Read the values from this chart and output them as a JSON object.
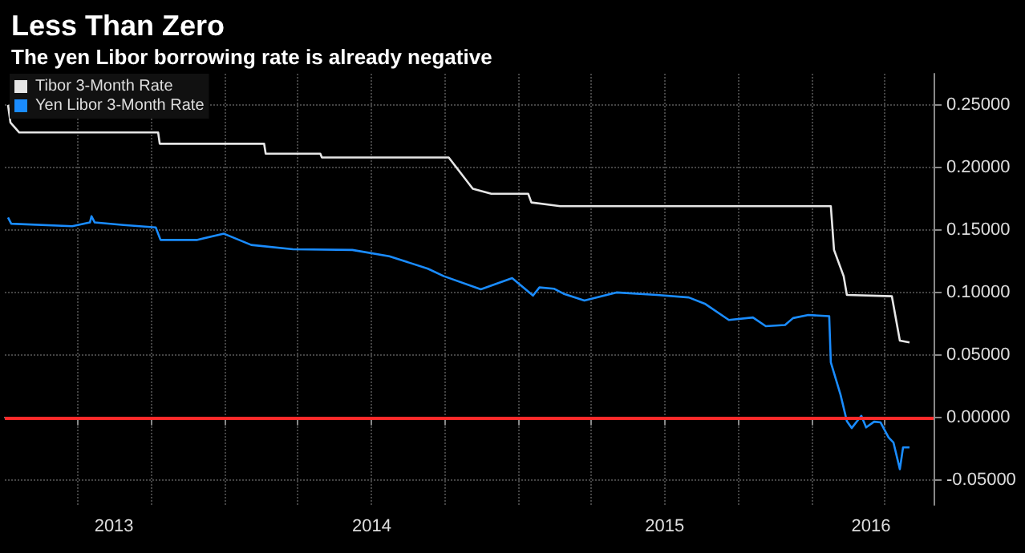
{
  "chart_data": {
    "type": "line",
    "title": "Less Than Zero",
    "subtitle": "The yen Libor borrowing rate is already negative",
    "xlim": [
      "2013-04-01",
      "2016-06-01"
    ],
    "xticks": [
      {
        "value": "2013-07-01",
        "label": null
      },
      {
        "value": "2013-08-15",
        "label": "2013"
      },
      {
        "value": "2013-10-01",
        "label": null
      },
      {
        "value": "2014-01-01",
        "label": null
      },
      {
        "value": "2014-04-01",
        "label": null
      },
      {
        "value": "2014-07-02",
        "label": "2014"
      },
      {
        "value": "2014-07-01",
        "label": null
      },
      {
        "value": "2014-10-01",
        "label": null
      },
      {
        "value": "2015-01-01",
        "label": null
      },
      {
        "value": "2015-04-01",
        "label": null
      },
      {
        "value": "2015-07-02",
        "label": "2015"
      },
      {
        "value": "2015-07-01",
        "label": null
      },
      {
        "value": "2015-10-01",
        "label": null
      },
      {
        "value": "2016-01-01",
        "label": null
      },
      {
        "value": "2016-03-15",
        "label": "2016"
      },
      {
        "value": "2016-04-01",
        "label": null
      }
    ],
    "ylim": [
      -0.07,
      0.275
    ],
    "yticks": [
      {
        "value": -0.05,
        "label": "-0.05000"
      },
      {
        "value": 0,
        "label": "0.00000"
      },
      {
        "value": 0.05,
        "label": "0.05000"
      },
      {
        "value": 0.1,
        "label": "0.10000"
      },
      {
        "value": 0.15,
        "label": "0.15000"
      },
      {
        "value": 0.2,
        "label": "0.20000"
      },
      {
        "value": 0.25,
        "label": "0.25000"
      }
    ],
    "grid": true,
    "legend": "top left",
    "line_style": "solid",
    "marker": "none",
    "ref_lines": [
      {
        "axis": "y",
        "value": 0,
        "label": null,
        "color": "#ff2a2a"
      }
    ],
    "series": [
      {
        "name": "Tibor 3-Month Rate",
        "color": "#e6e6e6",
        "x": [
          "2013-04-05",
          "2013-04-08",
          "2013-04-19",
          "2013-10-09",
          "2013-10-11",
          "2014-02-18",
          "2014-02-20",
          "2014-04-29",
          "2014-05-01",
          "2014-10-06",
          "2014-11-05",
          "2014-11-28",
          "2015-01-13",
          "2015-01-17",
          "2015-02-22",
          "2016-01-25",
          "2016-01-29",
          "2016-02-10",
          "2016-02-14",
          "2016-04-10",
          "2016-04-20",
          "2016-05-02"
        ],
        "values": [
          0.25,
          0.236,
          0.228,
          0.228,
          0.219,
          0.219,
          0.211,
          0.211,
          0.208,
          0.208,
          0.183,
          0.179,
          0.179,
          0.172,
          0.169,
          0.169,
          0.134,
          0.113,
          0.098,
          0.097,
          0.0615,
          0.06
        ]
      },
      {
        "name": "Yen Libor 3-Month Rate",
        "color": "#1a8cff",
        "x": [
          "2013-04-05",
          "2013-04-09",
          "2013-06-24",
          "2013-07-16",
          "2013-07-18",
          "2013-07-22",
          "2013-08-27",
          "2013-10-06",
          "2013-10-12",
          "2013-11-26",
          "2013-12-30",
          "2014-02-02",
          "2014-03-26",
          "2014-06-08",
          "2014-07-24",
          "2014-09-10",
          "2014-09-30",
          "2014-11-15",
          "2014-12-24",
          "2015-01-19",
          "2015-01-27",
          "2015-02-14",
          "2015-02-26",
          "2015-03-24",
          "2015-05-03",
          "2015-06-22",
          "2015-08-01",
          "2015-08-21",
          "2015-09-20",
          "2015-10-20",
          "2015-11-05",
          "2015-11-29",
          "2015-12-09",
          "2015-12-28",
          "2016-01-23",
          "2016-01-25",
          "2016-02-06",
          "2016-02-14",
          "2016-02-20",
          "2016-03-03",
          "2016-03-09",
          "2016-03-19",
          "2016-03-27",
          "2016-04-06",
          "2016-04-12",
          "2016-04-20",
          "2016-04-24",
          "2016-05-02"
        ],
        "values": [
          0.16,
          0.155,
          0.153,
          0.156,
          0.161,
          0.156,
          0.154,
          0.152,
          0.142,
          0.142,
          0.147,
          0.138,
          0.1346,
          0.134,
          0.129,
          0.119,
          0.113,
          0.1025,
          0.1115,
          0.0975,
          0.104,
          0.103,
          0.099,
          0.0935,
          0.1,
          0.098,
          0.096,
          0.091,
          0.078,
          0.08,
          0.073,
          0.074,
          0.0795,
          0.082,
          0.081,
          0.044,
          0.0184,
          -0.003,
          -0.0085,
          0.0013,
          -0.008,
          -0.0034,
          -0.004,
          -0.016,
          -0.02,
          -0.0414,
          -0.024,
          -0.024
        ]
      }
    ]
  }
}
